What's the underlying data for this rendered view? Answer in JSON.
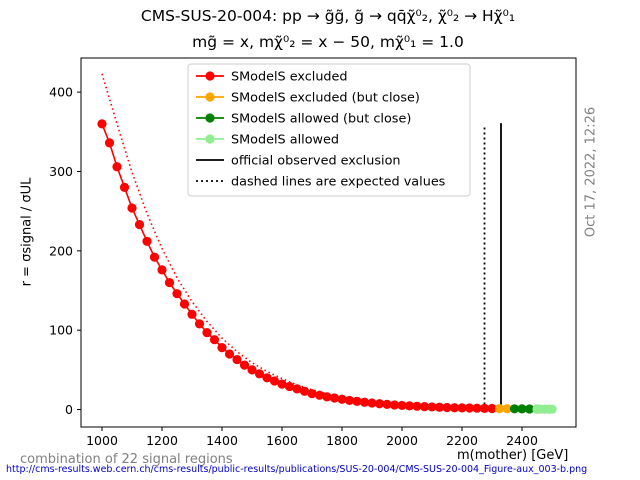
{
  "header": {
    "title_line1": "CMS-SUS-20-004: pp → g̃g̃, g̃ → qq̄χ̃⁰₂, χ̃⁰₂ → Hχ̃⁰₁",
    "title_line2": "mg̃ = x, mχ̃⁰₂ = x − 50, mχ̃⁰₁ = 1.0"
  },
  "timestamp": "Oct 17, 2022, 12:26",
  "footer": {
    "regions": "combination of 22 signal regions",
    "url": "http://cms-results.web.cern.ch/cms-results/public-results/publications/SUS-20-004/CMS-SUS-20-004_Figure-aux_003-b.png"
  },
  "colors": {
    "excluded": "#ff0000",
    "excluded_close": "#ffa500",
    "allowed_close": "#008000",
    "allowed": "#90ee90",
    "observed": "#000000"
  },
  "chart_data": {
    "type": "scatter",
    "xlabel": "m(mother) [GeV]",
    "ylabel": "r = σsignal / σUL",
    "xlim": [
      930,
      2580
    ],
    "ylim": [
      -22,
      443
    ],
    "xticks": [
      1000,
      1200,
      1400,
      1600,
      1800,
      2000,
      2200,
      2400
    ],
    "yticks": [
      0,
      100,
      200,
      300,
      400
    ],
    "legend_position": "top-center",
    "legend": [
      {
        "label": "SModelS excluded",
        "kind": "marker",
        "color": "#ff0000"
      },
      {
        "label": "SModelS excluded (but close)",
        "kind": "marker",
        "color": "#ffa500"
      },
      {
        "label": "SModelS allowed (but close)",
        "kind": "marker",
        "color": "#008000"
      },
      {
        "label": "SModelS allowed",
        "kind": "marker",
        "color": "#90ee90"
      },
      {
        "label": "official observed exclusion",
        "kind": "solid",
        "color": "#000000"
      },
      {
        "label": "dashed lines are expected values",
        "kind": "dotted",
        "color": "#000000"
      }
    ],
    "series": [
      {
        "name": "SModelS excluded",
        "color": "#ff0000",
        "line": true,
        "x": [
          1000,
          1025,
          1050,
          1075,
          1100,
          1125,
          1150,
          1175,
          1200,
          1225,
          1250,
          1275,
          1300,
          1325,
          1350,
          1375,
          1400,
          1425,
          1450,
          1475,
          1500,
          1525,
          1550,
          1575,
          1600,
          1625,
          1650,
          1675,
          1700,
          1725,
          1750,
          1775,
          1800,
          1825,
          1850,
          1875,
          1900,
          1925,
          1950,
          1975,
          2000,
          2025,
          2050,
          2075,
          2100,
          2125,
          2150,
          2175,
          2200,
          2225,
          2250,
          2275,
          2300
        ],
        "y": [
          360,
          336,
          306,
          280,
          254,
          233,
          212,
          192,
          176,
          160,
          146,
          133,
          120,
          108,
          97,
          88,
          78,
          70,
          63,
          56,
          50,
          45,
          40,
          36,
          32,
          29,
          26,
          23,
          20,
          18,
          16,
          14.5,
          13,
          11.5,
          10.3,
          9.2,
          8.2,
          7.3,
          6.5,
          5.8,
          5.2,
          4.6,
          4.1,
          3.7,
          3.3,
          2.9,
          2.6,
          2.3,
          2.1,
          1.9,
          1.7,
          1.5,
          1.35
        ]
      },
      {
        "name": "SModelS excluded (but close)",
        "color": "#ffa500",
        "line": false,
        "x": [
          2325,
          2350
        ],
        "y": [
          1.2,
          1.1
        ]
      },
      {
        "name": "SModelS allowed (but close)",
        "color": "#008000",
        "line": false,
        "x": [
          2375,
          2400,
          2425,
          2450
        ],
        "y": [
          0.95,
          0.85,
          0.75,
          0.7
        ]
      },
      {
        "name": "SModelS allowed",
        "color": "#90ee90",
        "line": false,
        "x": [
          2450,
          2460,
          2475,
          2490,
          2500
        ],
        "y": [
          0.65,
          0.6,
          0.55,
          0.5,
          0.45
        ]
      }
    ],
    "expected_curve": {
      "x": [
        1000,
        1050,
        1100,
        1150,
        1200,
        1250,
        1300,
        1350,
        1400,
        1450,
        1500,
        1550,
        1600,
        1650,
        1700,
        1750,
        1800,
        1850,
        1900,
        1950,
        2000,
        2050,
        2100,
        2150,
        2200,
        2250,
        2275
      ],
      "y": [
        423,
        360,
        299,
        247,
        203,
        166,
        136,
        111,
        90,
        73,
        59,
        48,
        39,
        31,
        25,
        20,
        16,
        12.8,
        10.2,
        8.1,
        6.4,
        5.1,
        4.0,
        3.2,
        2.5,
        2.0,
        1.8
      ]
    },
    "observed_exclusion": {
      "x": 2330,
      "y_top": 361
    },
    "expected_exclusion": {
      "x": 2275,
      "y_top": 357
    }
  }
}
